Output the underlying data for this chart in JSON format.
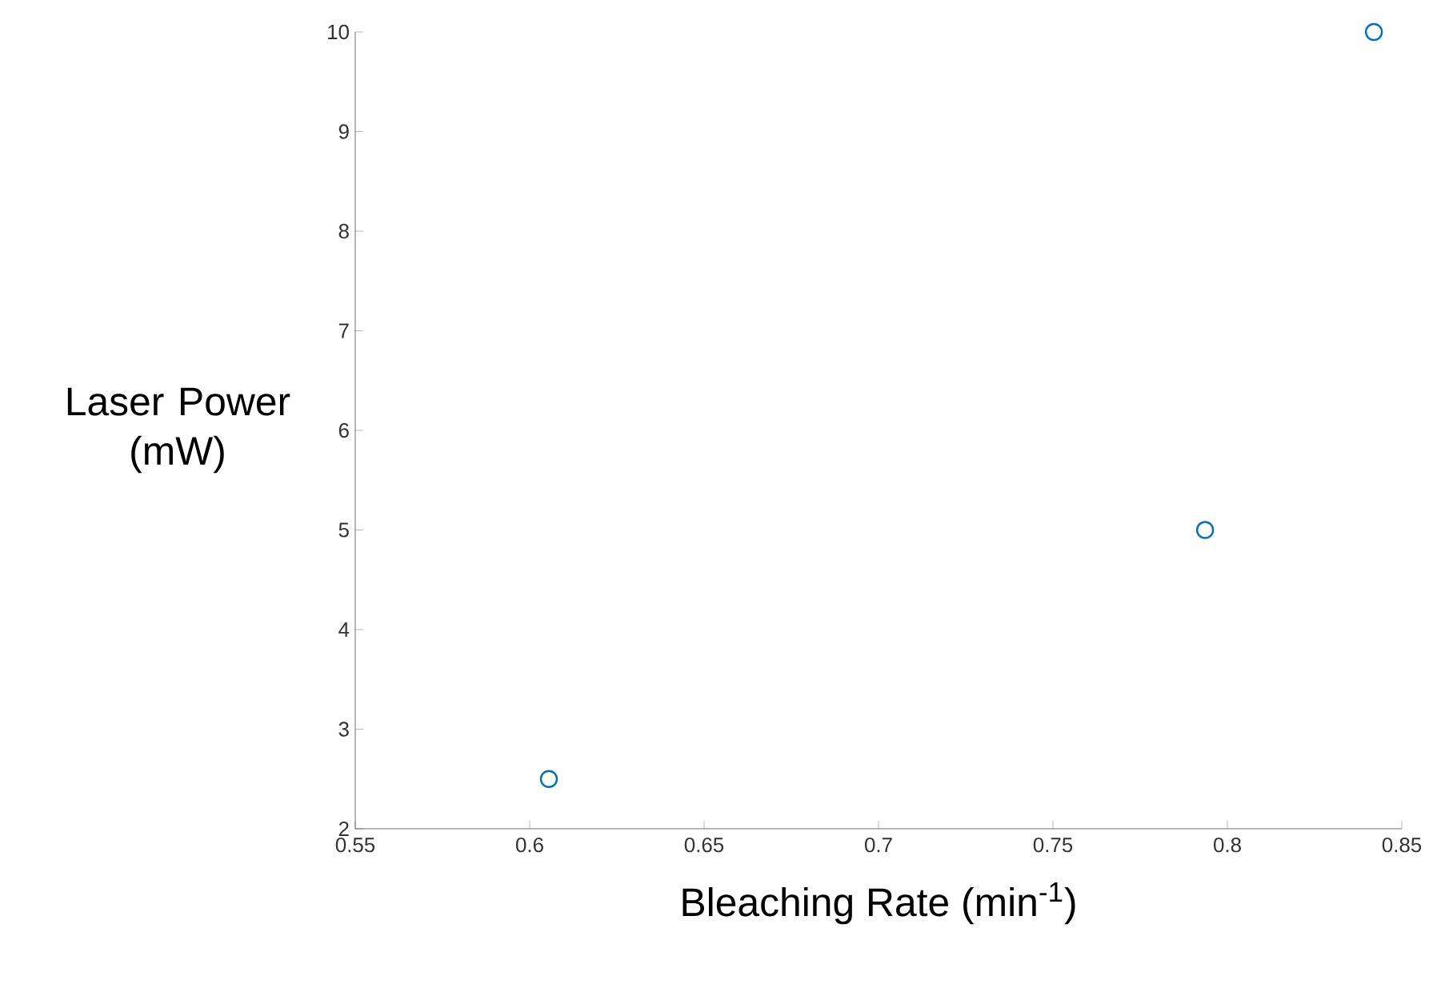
{
  "chart_data": {
    "type": "scatter",
    "xlabel": "Bleaching Rate (min$^{-1}$)",
    "ylabel": "Laser Power (mW)",
    "x": [
      0.6055,
      0.7936,
      0.842
    ],
    "series": [
      {
        "color": "#0072bd",
        "values": [
          2.5,
          5,
          10
        ]
      }
    ],
    "xlim": [
      0.55,
      0.85
    ],
    "ylim": [
      2,
      10
    ],
    "xticks": [
      0.55,
      0.6,
      0.65,
      0.7,
      0.75,
      0.8,
      0.85
    ],
    "yticks": [
      2,
      3,
      4,
      5,
      6,
      7,
      8,
      9,
      10
    ],
    "marker": "circle"
  }
}
